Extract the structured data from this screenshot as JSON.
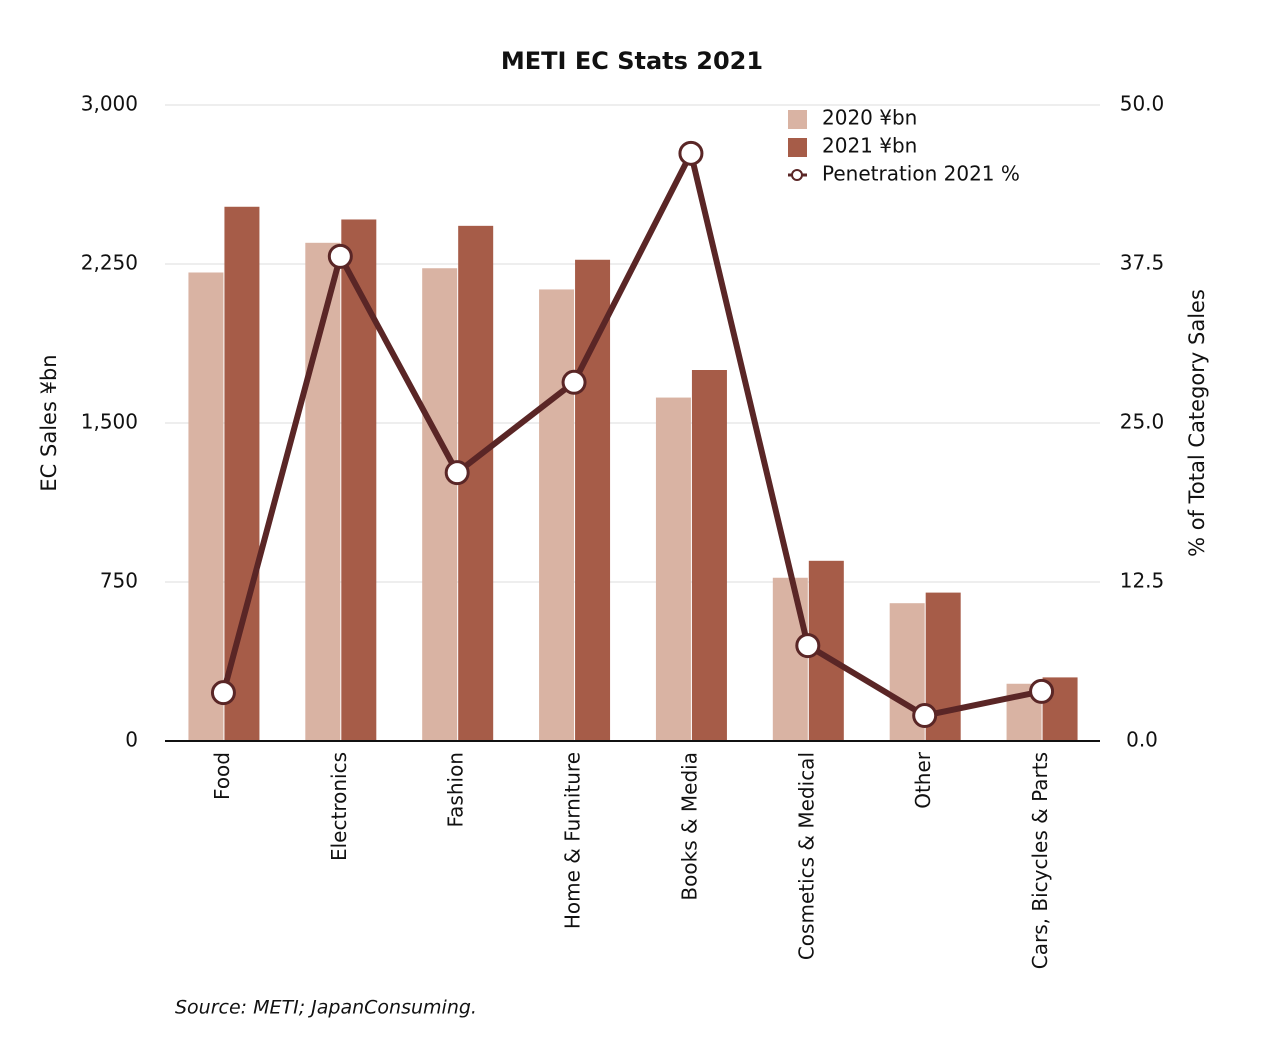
{
  "chart_data": {
    "type": "bar_line",
    "title": "METI EC Stats 2021",
    "source": "Source: METI; JapanConsuming.",
    "y_label": "EC Sales ¥bn",
    "y2_label": "% of Total Category Sales",
    "categories": [
      "Food",
      "Electronics",
      "Fashion",
      "Home & Furniture",
      "Books & Media",
      "Cosmetics & Medical",
      "Other",
      "Cars, Bicycles & Parts"
    ],
    "series": [
      {
        "name": "2020 ¥bn",
        "type": "bar",
        "color": "#d9b3a3",
        "values": [
          2210,
          2350,
          2230,
          2130,
          1620,
          770,
          650,
          270
        ]
      },
      {
        "name": "2021 ¥bn",
        "type": "bar",
        "color": "#a65c48",
        "values": [
          2520,
          2460,
          2430,
          2270,
          1750,
          850,
          700,
          300
        ]
      },
      {
        "name": "Penetration 2021 %",
        "type": "line",
        "axis": "y2",
        "color": "#5a2626",
        "values": [
          3.8,
          38.1,
          21.1,
          28.2,
          46.2,
          7.5,
          2.0,
          3.9
        ]
      }
    ],
    "ylim": [
      0,
      3000
    ],
    "yticks": [
      0,
      {
        "value": 750,
        "label": "750"
      },
      {
        "value": 1500,
        "label": "1,500"
      },
      {
        "value": 2250,
        "label": "2,250"
      },
      {
        "value": 3000,
        "label": "3,000"
      }
    ],
    "y2lim": [
      0,
      50
    ],
    "y2ticks": [
      {
        "value": 0,
        "label": "0.0"
      },
      12.5,
      {
        "value": 25,
        "label": "25.0"
      },
      37.5,
      {
        "value": 50,
        "label": "50.0"
      }
    ],
    "grid": true,
    "legend": "top-right"
  }
}
